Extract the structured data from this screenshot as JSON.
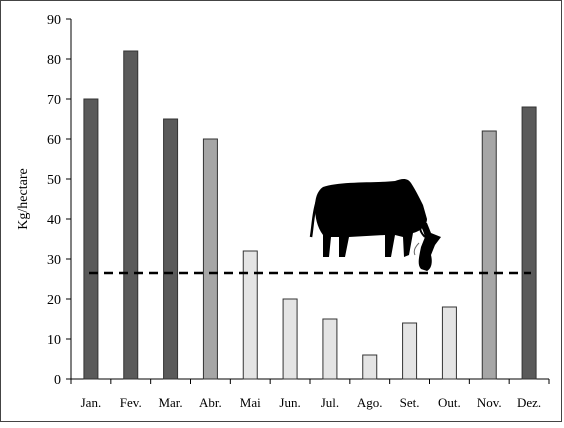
{
  "chart_data": {
    "type": "bar",
    "title": "",
    "xlabel": "",
    "ylabel": "Kg/hectare",
    "ylim": [
      0,
      90
    ],
    "yticks": [
      0,
      10,
      20,
      30,
      40,
      50,
      60,
      70,
      80,
      90
    ],
    "categories": [
      "Jan.",
      "Fev.",
      "Mar.",
      "Abr.",
      "Mai",
      "Jun.",
      "Jul.",
      "Ago.",
      "Set.",
      "Out.",
      "Nov.",
      "Dez."
    ],
    "values": [
      70,
      82,
      65,
      60,
      32,
      20,
      15,
      6,
      14,
      18,
      62,
      68
    ],
    "bar_colors": [
      "#5a5a5a",
      "#5a5a5a",
      "#5a5a5a",
      "#a6a6a6",
      "#e4e4e4",
      "#e4e4e4",
      "#e4e4e4",
      "#e4e4e4",
      "#e4e4e4",
      "#e4e4e4",
      "#a6a6a6",
      "#5a5a5a"
    ],
    "reference_line": {
      "value": 26.5,
      "style": "dashed",
      "color": "#000000"
    },
    "grid": false,
    "legend": "none",
    "illustration": "cow-silhouette-icon"
  }
}
